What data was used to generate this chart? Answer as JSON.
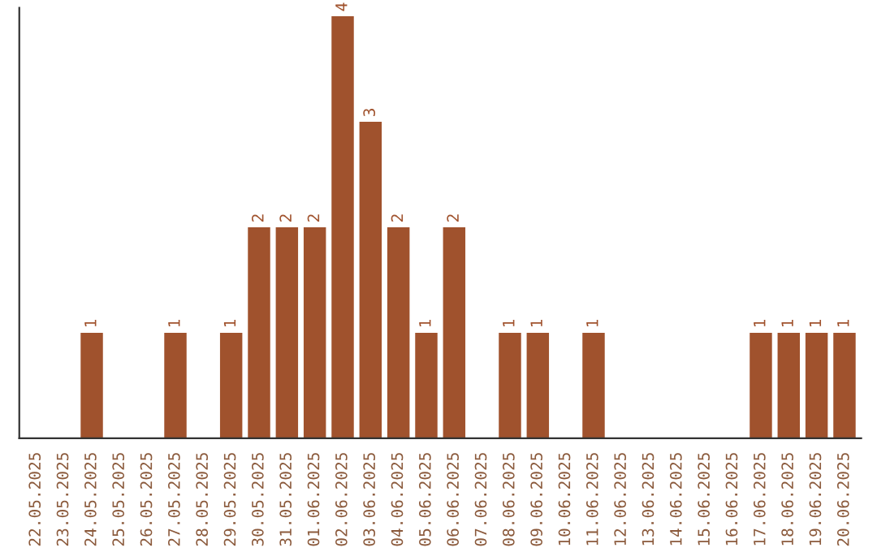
{
  "chart_data": {
    "type": "bar",
    "categories": [
      "22.05.2025",
      "23.05.2025",
      "24.05.2025",
      "25.05.2025",
      "26.05.2025",
      "27.05.2025",
      "28.05.2025",
      "29.05.2025",
      "30.05.2025",
      "31.05.2025",
      "01.06.2025",
      "02.06.2025",
      "03.06.2025",
      "04.06.2025",
      "05.06.2025",
      "06.06.2025",
      "07.06.2025",
      "08.06.2025",
      "09.06.2025",
      "10.06.2025",
      "11.06.2025",
      "12.06.2025",
      "13.06.2025",
      "14.06.2025",
      "15.06.2025",
      "16.06.2025",
      "17.06.2025",
      "18.06.2025",
      "19.06.2025",
      "20.06.2025"
    ],
    "values": [
      0,
      0,
      1,
      0,
      0,
      1,
      0,
      1,
      2,
      2,
      2,
      4,
      3,
      2,
      1,
      2,
      0,
      1,
      1,
      0,
      1,
      0,
      0,
      0,
      0,
      0,
      1,
      1,
      1,
      1
    ],
    "value_labels": [
      null,
      null,
      "1",
      null,
      null,
      "1",
      null,
      "1",
      "2",
      "2",
      "2",
      "4",
      "3",
      "2",
      "1",
      "2",
      null,
      "1",
      "1",
      null,
      "1",
      null,
      null,
      null,
      null,
      null,
      "1",
      "1",
      "1",
      "1"
    ],
    "color": "#a0522d",
    "grid": false,
    "legend": false,
    "tick_labels": "x"
  }
}
